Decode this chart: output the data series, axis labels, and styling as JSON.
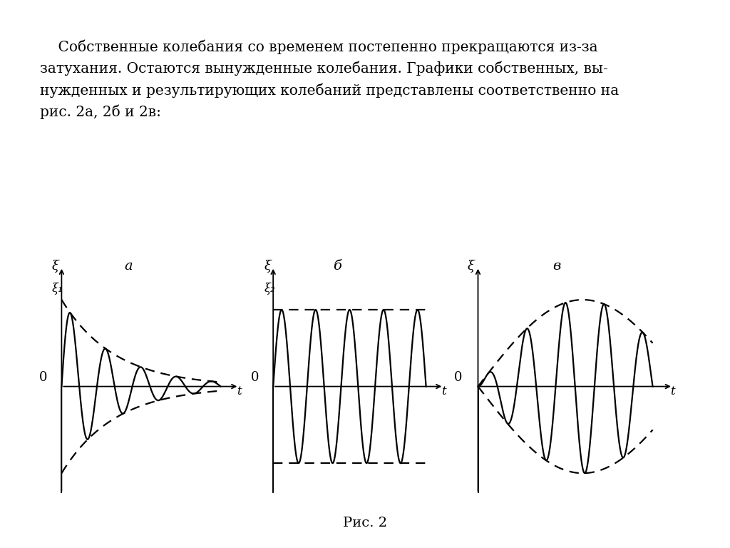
{
  "background_color": "#ffffff",
  "text_color": "#000000",
  "caption": "Рис. 2",
  "panel_a_title": "а",
  "panel_b_title": "б",
  "panel_c_title": "в",
  "xi_label": "ξ",
  "xi1_label": "ξ₁",
  "xi2_label": "ξ₂",
  "zero_label": "0",
  "t_label": "t",
  "paragraph_line1": "    Собственные колебания со временем постепенно прекращаются из-за",
  "paragraph_line2": "затухания. Остаются вынужденные колебания. Графики собственных, вы-",
  "paragraph_line3": "нужденных и результирующих колебаний представлены соответственно на",
  "paragraph_line4": "рис. 2а, 2б и 2в:"
}
